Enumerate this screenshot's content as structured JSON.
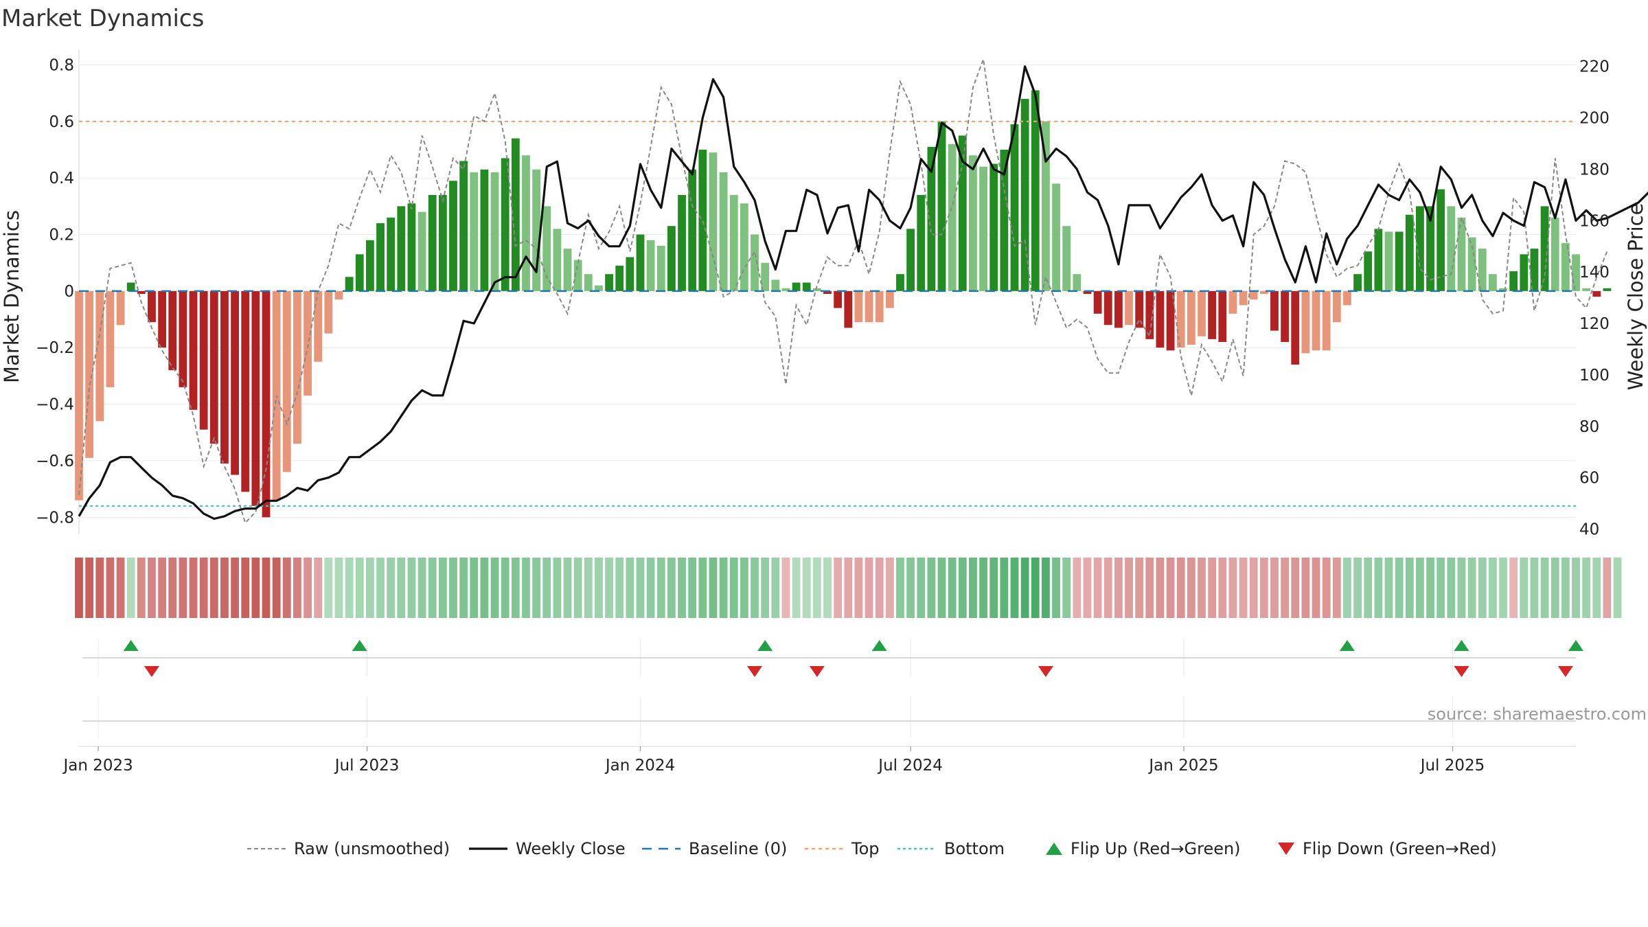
{
  "source_note": "source: sharemaestro.com",
  "chart_data": {
    "type": "bar",
    "title": "Market Dynamics",
    "ylabel_left": "Market Dynamics",
    "ylabel_right": "Weekly Close Price",
    "ylim_left": [
      -0.86,
      0.84
    ],
    "ylim_right": [
      38,
      225
    ],
    "yticks_left": [
      0.8,
      0.6,
      0.4,
      0.2,
      0,
      -0.2,
      -0.4,
      -0.6,
      -0.8
    ],
    "ytick_labels_left": [
      "0.8",
      "0.6",
      "0.4",
      "0.2",
      "0",
      "−0.2",
      "−0.4",
      "−0.6",
      "−0.8"
    ],
    "yticks_right": [
      220,
      200,
      180,
      160,
      140,
      120,
      100,
      80,
      60,
      40
    ],
    "x_start": "2022-12-19",
    "x_end": "2025-09-22",
    "x_ticks": [
      {
        "date": "2023-01-01",
        "label": "Jan 2023"
      },
      {
        "date": "2023-07-01",
        "label": "Jul 2023"
      },
      {
        "date": "2024-01-01",
        "label": "Jan 2024"
      },
      {
        "date": "2024-07-01",
        "label": "Jul 2024"
      },
      {
        "date": "2025-01-01",
        "label": "Jan 2025"
      },
      {
        "date": "2025-07-01",
        "label": "Jul 2025"
      }
    ],
    "first_week": "2022-12-19",
    "week_step_days": 7,
    "reference_lines": {
      "baseline": 0,
      "top": 0.6,
      "bottom": -0.76
    },
    "grid": true,
    "legend_position": "bottom",
    "legend": [
      "Raw (unsmoothed)",
      "Weekly Close",
      "Baseline (0)",
      "Top",
      "Bottom",
      "Flip Up (Red→Green)",
      "Flip Down (Green→Red)"
    ],
    "colors": {
      "strong_green": "#228b22",
      "light_green": "#7ec07e",
      "strong_red": "#b22222",
      "light_red": "#e8967a",
      "close_line": "#111111",
      "raw_line": "#888888",
      "baseline": "#1f77b4",
      "top": "#f4a460",
      "bottom": "#40c4c4",
      "flip_up": "#22a046",
      "flip_down": "#d62728"
    },
    "dynamics": [
      -0.74,
      -0.59,
      -0.46,
      -0.34,
      -0.12,
      0.03,
      -0.01,
      -0.11,
      -0.2,
      -0.28,
      -0.34,
      -0.42,
      -0.49,
      -0.54,
      -0.61,
      -0.65,
      -0.71,
      -0.76,
      -0.8,
      -0.74,
      -0.64,
      -0.54,
      -0.37,
      -0.25,
      -0.15,
      -0.03,
      0.05,
      0.13,
      0.18,
      0.24,
      0.26,
      0.3,
      0.31,
      0.28,
      0.34,
      0.34,
      0.39,
      0.46,
      0.42,
      0.43,
      0.42,
      0.47,
      0.54,
      0.48,
      0.43,
      0.3,
      0.22,
      0.15,
      0.11,
      0.06,
      0.02,
      0.06,
      0.09,
      0.12,
      0.2,
      0.18,
      0.16,
      0.23,
      0.34,
      0.43,
      0.5,
      0.49,
      0.42,
      0.34,
      0.31,
      0.2,
      0.1,
      0.04,
      0.01,
      0.03,
      0.03,
      0.01,
      -0.01,
      -0.06,
      -0.13,
      -0.11,
      -0.11,
      -0.11,
      -0.06,
      0.06,
      0.22,
      0.34,
      0.51,
      0.6,
      0.52,
      0.55,
      0.48,
      0.44,
      0.45,
      0.5,
      0.59,
      0.68,
      0.71,
      0.6,
      0.38,
      0.23,
      0.06,
      -0.01,
      -0.08,
      -0.12,
      -0.13,
      -0.12,
      -0.13,
      -0.17,
      -0.2,
      -0.21,
      -0.2,
      -0.19,
      -0.16,
      -0.17,
      -0.18,
      -0.08,
      -0.05,
      -0.03,
      -0.01,
      -0.14,
      -0.18,
      -0.26,
      -0.22,
      -0.21,
      -0.21,
      -0.11,
      -0.05,
      0.06,
      0.14,
      0.22,
      0.21,
      0.21,
      0.27,
      0.3,
      0.3,
      0.36,
      0.3,
      0.26,
      0.19,
      0.15,
      0.06,
      0.01,
      0.07,
      0.13,
      0.15,
      0.3,
      0.26,
      0.17,
      0.13,
      0.01,
      -0.02,
      0.01
    ],
    "weekly_close": [
      45,
      52,
      57,
      66,
      68,
      68,
      64,
      60,
      57,
      53,
      52,
      50,
      46,
      44,
      45,
      47,
      48,
      48,
      51,
      51,
      53,
      56,
      55,
      59,
      60,
      62,
      68,
      68,
      71,
      74,
      78,
      84,
      90,
      94,
      92,
      92,
      106,
      121,
      120,
      128,
      136,
      138,
      138,
      146,
      140,
      181,
      183,
      159,
      157,
      160,
      154,
      150,
      150,
      158,
      182,
      172,
      165,
      188,
      183,
      178,
      200,
      215,
      208,
      181,
      175,
      168,
      152,
      141,
      156,
      156,
      172,
      170,
      155,
      165,
      166,
      148,
      172,
      168,
      160,
      157,
      165,
      184,
      179,
      198,
      195,
      183,
      180,
      188,
      180,
      178,
      196,
      220,
      209,
      183,
      188,
      185,
      180,
      171,
      168,
      158,
      143,
      166,
      166,
      166,
      157,
      163,
      169,
      173,
      178,
      166,
      160,
      162,
      150,
      175,
      170,
      157,
      145,
      136,
      150,
      136,
      155,
      143,
      153,
      158,
      166,
      174,
      170,
      168,
      176,
      171,
      160,
      181,
      176,
      165,
      170,
      160,
      154,
      163,
      160,
      158,
      175,
      173,
      161,
      176,
      160,
      164,
      160,
      161,
      163,
      165,
      167,
      171
    ],
    "raw": [
      -0.72,
      -0.34,
      -0.15,
      0.08,
      0.09,
      0.1,
      -0.04,
      -0.13,
      -0.21,
      -0.27,
      -0.32,
      -0.44,
      -0.62,
      -0.52,
      -0.62,
      -0.7,
      -0.82,
      -0.78,
      -0.63,
      -0.37,
      -0.47,
      -0.36,
      -0.2,
      0.0,
      0.09,
      0.24,
      0.22,
      0.33,
      0.43,
      0.35,
      0.48,
      0.42,
      0.29,
      0.55,
      0.44,
      0.32,
      0.47,
      0.43,
      0.62,
      0.6,
      0.7,
      0.53,
      0.16,
      0.18,
      0.15,
      0.05,
      -0.01,
      -0.08,
      0.1,
      0.27,
      0.15,
      0.21,
      0.3,
      0.14,
      0.31,
      0.51,
      0.72,
      0.66,
      0.47,
      0.3,
      0.25,
      0.12,
      -0.02,
      0.0,
      0.08,
      0.14,
      -0.04,
      -0.09,
      -0.33,
      -0.05,
      -0.12,
      0.02,
      0.12,
      0.09,
      0.09,
      0.18,
      0.06,
      0.21,
      0.49,
      0.74,
      0.66,
      0.45,
      0.2,
      0.2,
      0.3,
      0.45,
      0.72,
      0.82,
      0.55,
      0.36,
      0.16,
      0.18,
      -0.12,
      0.05,
      -0.04,
      -0.13,
      -0.1,
      -0.13,
      -0.24,
      -0.29,
      -0.29,
      -0.18,
      -0.1,
      -0.16,
      0.13,
      0.05,
      -0.23,
      -0.37,
      -0.19,
      -0.25,
      -0.32,
      -0.17,
      -0.3,
      0.2,
      0.23,
      0.3,
      0.46,
      0.45,
      0.42,
      0.27,
      0.13,
      0.05,
      0.08,
      0.09,
      0.16,
      0.22,
      0.35,
      0.45,
      0.35,
      0.08,
      0.04,
      0.05,
      0.06,
      0.26,
      0.16,
      -0.03,
      -0.08,
      -0.07,
      0.33,
      0.28,
      -0.07,
      0.05,
      0.47,
      0.2,
      -0.02,
      -0.06,
      0.05,
      0.14
    ],
    "strip": [
      -0.74,
      -0.7,
      -0.66,
      -0.62,
      -0.58,
      0.2,
      -0.45,
      -0.48,
      -0.52,
      -0.55,
      -0.58,
      -0.6,
      -0.62,
      -0.64,
      -0.66,
      -0.68,
      -0.7,
      -0.72,
      -0.73,
      -0.7,
      -0.6,
      -0.5,
      -0.4,
      -0.3,
      0.2,
      0.22,
      0.24,
      0.26,
      0.28,
      0.3,
      0.32,
      0.34,
      0.36,
      0.38,
      0.4,
      0.42,
      0.44,
      0.46,
      0.48,
      0.5,
      0.48,
      0.46,
      0.44,
      0.42,
      0.4,
      0.38,
      0.36,
      0.34,
      0.32,
      0.3,
      0.3,
      0.3,
      0.32,
      0.34,
      0.36,
      0.38,
      0.4,
      0.42,
      0.44,
      0.46,
      0.48,
      0.5,
      0.48,
      0.46,
      0.44,
      0.4,
      0.36,
      0.32,
      -0.2,
      0.2,
      0.2,
      0.2,
      0.2,
      -0.25,
      -0.28,
      -0.3,
      -0.3,
      -0.3,
      -0.25,
      0.4,
      0.42,
      0.44,
      0.48,
      0.5,
      0.52,
      0.54,
      0.56,
      0.58,
      0.6,
      0.62,
      0.66,
      0.7,
      0.72,
      0.68,
      0.5,
      0.4,
      -0.24,
      -0.26,
      -0.28,
      -0.3,
      -0.32,
      -0.34,
      -0.36,
      -0.38,
      -0.4,
      -0.4,
      -0.4,
      -0.38,
      -0.36,
      -0.34,
      -0.32,
      -0.3,
      -0.28,
      -0.3,
      -0.32,
      -0.34,
      -0.36,
      -0.38,
      -0.4,
      -0.4,
      -0.38,
      -0.36,
      0.3,
      0.32,
      0.34,
      0.36,
      0.36,
      0.38,
      0.4,
      0.4,
      0.42,
      0.4,
      0.38,
      0.36,
      0.34,
      0.32,
      0.3,
      0.28,
      -0.2,
      0.3,
      0.32,
      0.34,
      0.36,
      0.34,
      0.32,
      0.3,
      0.28,
      -0.3,
      0.26
    ],
    "flips_up": [
      "2023-01-23",
      "2023-06-26",
      "2024-03-25",
      "2024-06-10",
      "2025-04-21",
      "2025-07-07",
      "2025-09-22"
    ],
    "flips_down": [
      "2023-02-06",
      "2024-03-18",
      "2024-04-29",
      "2024-09-30",
      "2025-07-07",
      "2025-09-15"
    ]
  }
}
